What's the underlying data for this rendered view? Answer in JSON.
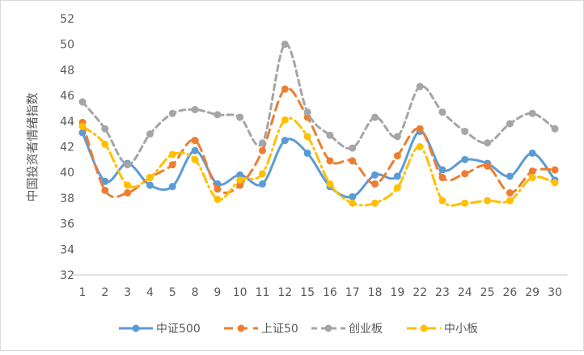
{
  "chart_data": {
    "type": "line",
    "title": "",
    "xlabel": "",
    "ylabel": "中国投资者情绪指数",
    "ylim": [
      32,
      52
    ],
    "yticks": [
      32,
      34,
      36,
      38,
      40,
      42,
      44,
      46,
      48,
      50,
      52
    ],
    "grid": false,
    "legend_position": "bottom",
    "categories": [
      "1",
      "2",
      "3",
      "4",
      "5",
      "8",
      "9",
      "10",
      "11",
      "12",
      "15",
      "16",
      "17",
      "18",
      "19",
      "22",
      "23",
      "24",
      "25",
      "26",
      "29",
      "30"
    ],
    "series": [
      {
        "name": "中证500",
        "color": "#5B9BD5",
        "dash": "solid",
        "values": [
          43.1,
          39.3,
          40.7,
          39.0,
          38.9,
          41.7,
          39.1,
          39.8,
          39.1,
          42.5,
          41.5,
          38.9,
          38.1,
          39.8,
          39.7,
          43.2,
          40.2,
          41.0,
          40.7,
          39.7,
          41.5,
          39.4
        ]
      },
      {
        "name": "上证50",
        "color": "#ED7D31",
        "dash": "longdash",
        "values": [
          43.9,
          38.6,
          38.4,
          39.6,
          40.6,
          42.5,
          38.7,
          39.0,
          41.7,
          46.5,
          44.3,
          40.9,
          40.9,
          39.1,
          41.3,
          43.4,
          39.6,
          39.9,
          40.5,
          38.4,
          40.1,
          40.2
        ]
      },
      {
        "name": "创业板",
        "color": "#A5A5A5",
        "dash": "dash",
        "values": [
          45.5,
          43.4,
          40.6,
          43.0,
          44.6,
          44.9,
          44.5,
          44.3,
          42.3,
          50.0,
          44.7,
          42.9,
          41.9,
          44.3,
          42.8,
          46.7,
          44.7,
          43.2,
          42.3,
          43.8,
          44.6,
          43.4
        ]
      },
      {
        "name": "中小板",
        "color": "#FFC000",
        "dash": "dashdot",
        "values": [
          43.6,
          42.2,
          39.0,
          39.6,
          41.4,
          41.0,
          37.9,
          39.4,
          39.9,
          44.1,
          42.8,
          39.1,
          37.6,
          37.6,
          38.8,
          42.0,
          37.8,
          37.6,
          37.8,
          37.8,
          39.6,
          39.2
        ]
      }
    ]
  }
}
